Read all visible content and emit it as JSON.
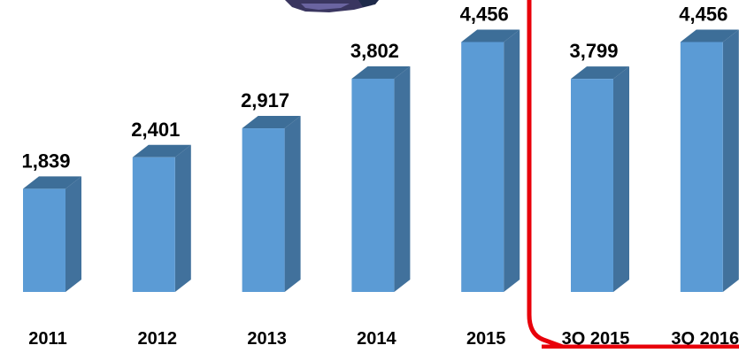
{
  "chart_data": {
    "type": "bar",
    "categories": [
      "2011",
      "2012",
      "2013",
      "2014",
      "2015",
      "3Q 2015",
      "3Q 2016"
    ],
    "values": [
      1839,
      2401,
      2917,
      3802,
      4456,
      3799,
      4456
    ],
    "data_labels": [
      "1,839",
      "2,401",
      "2,917",
      "3,802",
      "4,456",
      "3,799",
      "4,456"
    ],
    "title": "",
    "xlabel": "",
    "ylabel": "",
    "ylim": [
      0,
      4600
    ],
    "grid": false,
    "legend": "none",
    "style": "3d-column",
    "highlight_group": [
      "3Q 2015",
      "3Q 2016"
    ]
  },
  "colors": {
    "bar_front": "#5b9bd5",
    "bar_side": "#41719c",
    "bar_top": "#3d6e98",
    "highlight_border": "#e8000a",
    "text": "#000000"
  }
}
